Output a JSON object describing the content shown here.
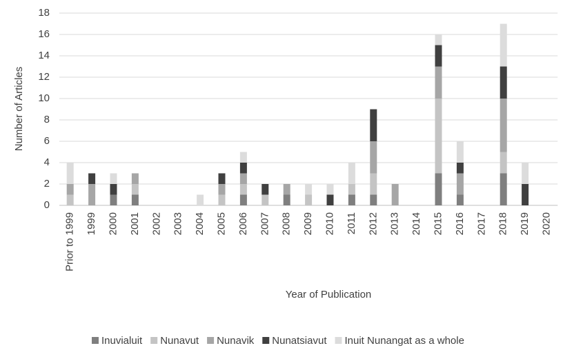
{
  "chart_data": {
    "type": "stacked_bar",
    "x_label": "Year of Publication",
    "y_label": "Number of Articles",
    "categories": [
      "Prior to 1999",
      "1999",
      "2000",
      "2001",
      "2002",
      "2003",
      "2004",
      "2005",
      "2006",
      "2007",
      "2008",
      "2009",
      "2010",
      "2011",
      "2012",
      "2013",
      "2014",
      "2015",
      "2016",
      "2017",
      "2018",
      "2019",
      "2020"
    ],
    "series": [
      {
        "name": "Inuvialuit",
        "color": "#7f7f7f",
        "values": [
          0,
          0,
          1,
          1,
          0,
          0,
          0,
          0,
          1,
          0,
          1,
          0,
          0,
          1,
          1,
          0,
          0,
          3,
          1,
          0,
          3,
          0,
          0
        ]
      },
      {
        "name": "Nunavut",
        "color": "#c4c4c4",
        "values": [
          1,
          0,
          0,
          1,
          0,
          0,
          0,
          1,
          1,
          1,
          0,
          1,
          0,
          1,
          2,
          0,
          0,
          7,
          0,
          0,
          2,
          0,
          0
        ]
      },
      {
        "name": "Nunavik",
        "color": "#a6a6a6",
        "values": [
          1,
          2,
          0,
          1,
          0,
          0,
          0,
          1,
          1,
          0,
          1,
          0,
          0,
          0,
          3,
          2,
          0,
          3,
          2,
          0,
          5,
          0,
          0
        ]
      },
      {
        "name": "Nunatsiavut",
        "color": "#404040",
        "values": [
          0,
          1,
          1,
          0,
          0,
          0,
          0,
          1,
          1,
          1,
          0,
          0,
          1,
          0,
          3,
          0,
          0,
          2,
          1,
          0,
          3,
          2,
          0
        ]
      },
      {
        "name": "Inuit Nunangat as a whole",
        "color": "#dcdcdc",
        "values": [
          2,
          0,
          1,
          0,
          0,
          0,
          1,
          0,
          1,
          0,
          0,
          1,
          1,
          2,
          0,
          0,
          0,
          1,
          2,
          0,
          4,
          2,
          0
        ]
      }
    ],
    "ylim": [
      0,
      18
    ],
    "yticks": [
      0,
      2,
      4,
      6,
      8,
      10,
      12,
      14,
      16,
      18
    ],
    "grid": true
  }
}
